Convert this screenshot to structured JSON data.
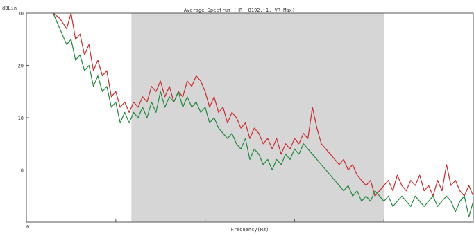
{
  "chart_data": {
    "type": "line",
    "title": "Average Spectrum (HR, 8192, 1, VR-Max)",
    "xlabel": "Frequency(Hz)",
    "ylabel": "dBLin",
    "y_ticks": [
      "30",
      "20",
      "10",
      "0"
    ],
    "x_tick_labels": [
      "0"
    ],
    "ylim": [
      -10,
      30
    ],
    "xlim": [
      0,
      1
    ],
    "grid": false,
    "highlight_band": {
      "x_start": 0.235,
      "x_end": 0.8,
      "color": "#d6d6d6"
    },
    "series": [
      {
        "color": "#cc2a2a",
        "x": [
          0.06,
          0.075,
          0.09,
          0.1,
          0.11,
          0.12,
          0.13,
          0.14,
          0.15,
          0.16,
          0.17,
          0.18,
          0.19,
          0.2,
          0.21,
          0.22,
          0.23,
          0.24,
          0.25,
          0.26,
          0.27,
          0.28,
          0.29,
          0.3,
          0.31,
          0.32,
          0.33,
          0.34,
          0.35,
          0.36,
          0.37,
          0.38,
          0.39,
          0.4,
          0.41,
          0.42,
          0.43,
          0.44,
          0.45,
          0.46,
          0.47,
          0.48,
          0.49,
          0.5,
          0.51,
          0.52,
          0.53,
          0.54,
          0.55,
          0.56,
          0.57,
          0.58,
          0.59,
          0.6,
          0.61,
          0.62,
          0.63,
          0.64,
          0.65,
          0.66,
          0.67,
          0.68,
          0.69,
          0.7,
          0.71,
          0.72,
          0.73,
          0.74,
          0.75,
          0.76,
          0.77,
          0.78,
          0.79,
          0.8,
          0.81,
          0.82,
          0.83,
          0.84,
          0.85,
          0.86,
          0.87,
          0.88,
          0.89,
          0.9,
          0.91,
          0.92,
          0.93,
          0.94,
          0.95,
          0.96,
          0.97,
          0.98,
          0.99,
          1.0
        ],
        "values": [
          30,
          29,
          27,
          30,
          25,
          26,
          22,
          24,
          19,
          21,
          18,
          19,
          14,
          15,
          12,
          13,
          11,
          13,
          12,
          14,
          13,
          16,
          15,
          17,
          14,
          16,
          13,
          15,
          14,
          17,
          16,
          18,
          17,
          15,
          12,
          14,
          11,
          12,
          9,
          11,
          10,
          8,
          9,
          6,
          8,
          7,
          5,
          6,
          4,
          6,
          3,
          5,
          4,
          6,
          5,
          7,
          6,
          12,
          8,
          5,
          4,
          3,
          2,
          1,
          2,
          0,
          1,
          -1,
          -2,
          -3,
          -2,
          -5,
          -4,
          -3,
          -2,
          -4,
          -1,
          -3,
          -4,
          -2,
          -3,
          -1,
          -4,
          -3,
          -5,
          -2,
          -4,
          1,
          -3,
          -2,
          -4,
          -5,
          -3,
          -5
        ]
      },
      {
        "color": "#1e8a3c",
        "x": [
          0.06,
          0.075,
          0.09,
          0.1,
          0.11,
          0.12,
          0.13,
          0.14,
          0.15,
          0.16,
          0.17,
          0.18,
          0.19,
          0.2,
          0.21,
          0.22,
          0.23,
          0.24,
          0.25,
          0.26,
          0.27,
          0.28,
          0.29,
          0.3,
          0.31,
          0.32,
          0.33,
          0.34,
          0.35,
          0.36,
          0.37,
          0.38,
          0.39,
          0.4,
          0.41,
          0.42,
          0.43,
          0.44,
          0.45,
          0.46,
          0.47,
          0.48,
          0.49,
          0.5,
          0.51,
          0.52,
          0.53,
          0.54,
          0.55,
          0.56,
          0.57,
          0.58,
          0.59,
          0.6,
          0.61,
          0.62,
          0.63,
          0.64,
          0.65,
          0.66,
          0.67,
          0.68,
          0.69,
          0.7,
          0.71,
          0.72,
          0.73,
          0.74,
          0.75,
          0.76,
          0.77,
          0.78,
          0.79,
          0.8,
          0.81,
          0.82,
          0.83,
          0.84,
          0.85,
          0.86,
          0.87,
          0.88,
          0.89,
          0.9,
          0.91,
          0.92,
          0.93,
          0.94,
          0.95,
          0.96,
          0.97,
          0.98,
          0.99,
          1.0
        ],
        "values": [
          30,
          27,
          24,
          25,
          21,
          22,
          19,
          20,
          16,
          18,
          15,
          16,
          12,
          13,
          9,
          11,
          9,
          11,
          10,
          12,
          10,
          13,
          11,
          15,
          12,
          14,
          13,
          15,
          12,
          14,
          12,
          13,
          11,
          12,
          9,
          10,
          8,
          7,
          6,
          7,
          5,
          4,
          6,
          2,
          4,
          3,
          1,
          2,
          0,
          2,
          1,
          3,
          2,
          4,
          3,
          5,
          4,
          3,
          2,
          1,
          0,
          -1,
          -2,
          -3,
          -4,
          -3,
          -5,
          -4,
          -6,
          -5,
          -6,
          -4,
          -5,
          -6,
          -5,
          -7,
          -6,
          -5,
          -6,
          -7,
          -5,
          -6,
          -7,
          -6,
          -5,
          -7,
          -6,
          -5,
          -6,
          -8,
          -6,
          -5,
          -9,
          -6
        ]
      }
    ]
  }
}
